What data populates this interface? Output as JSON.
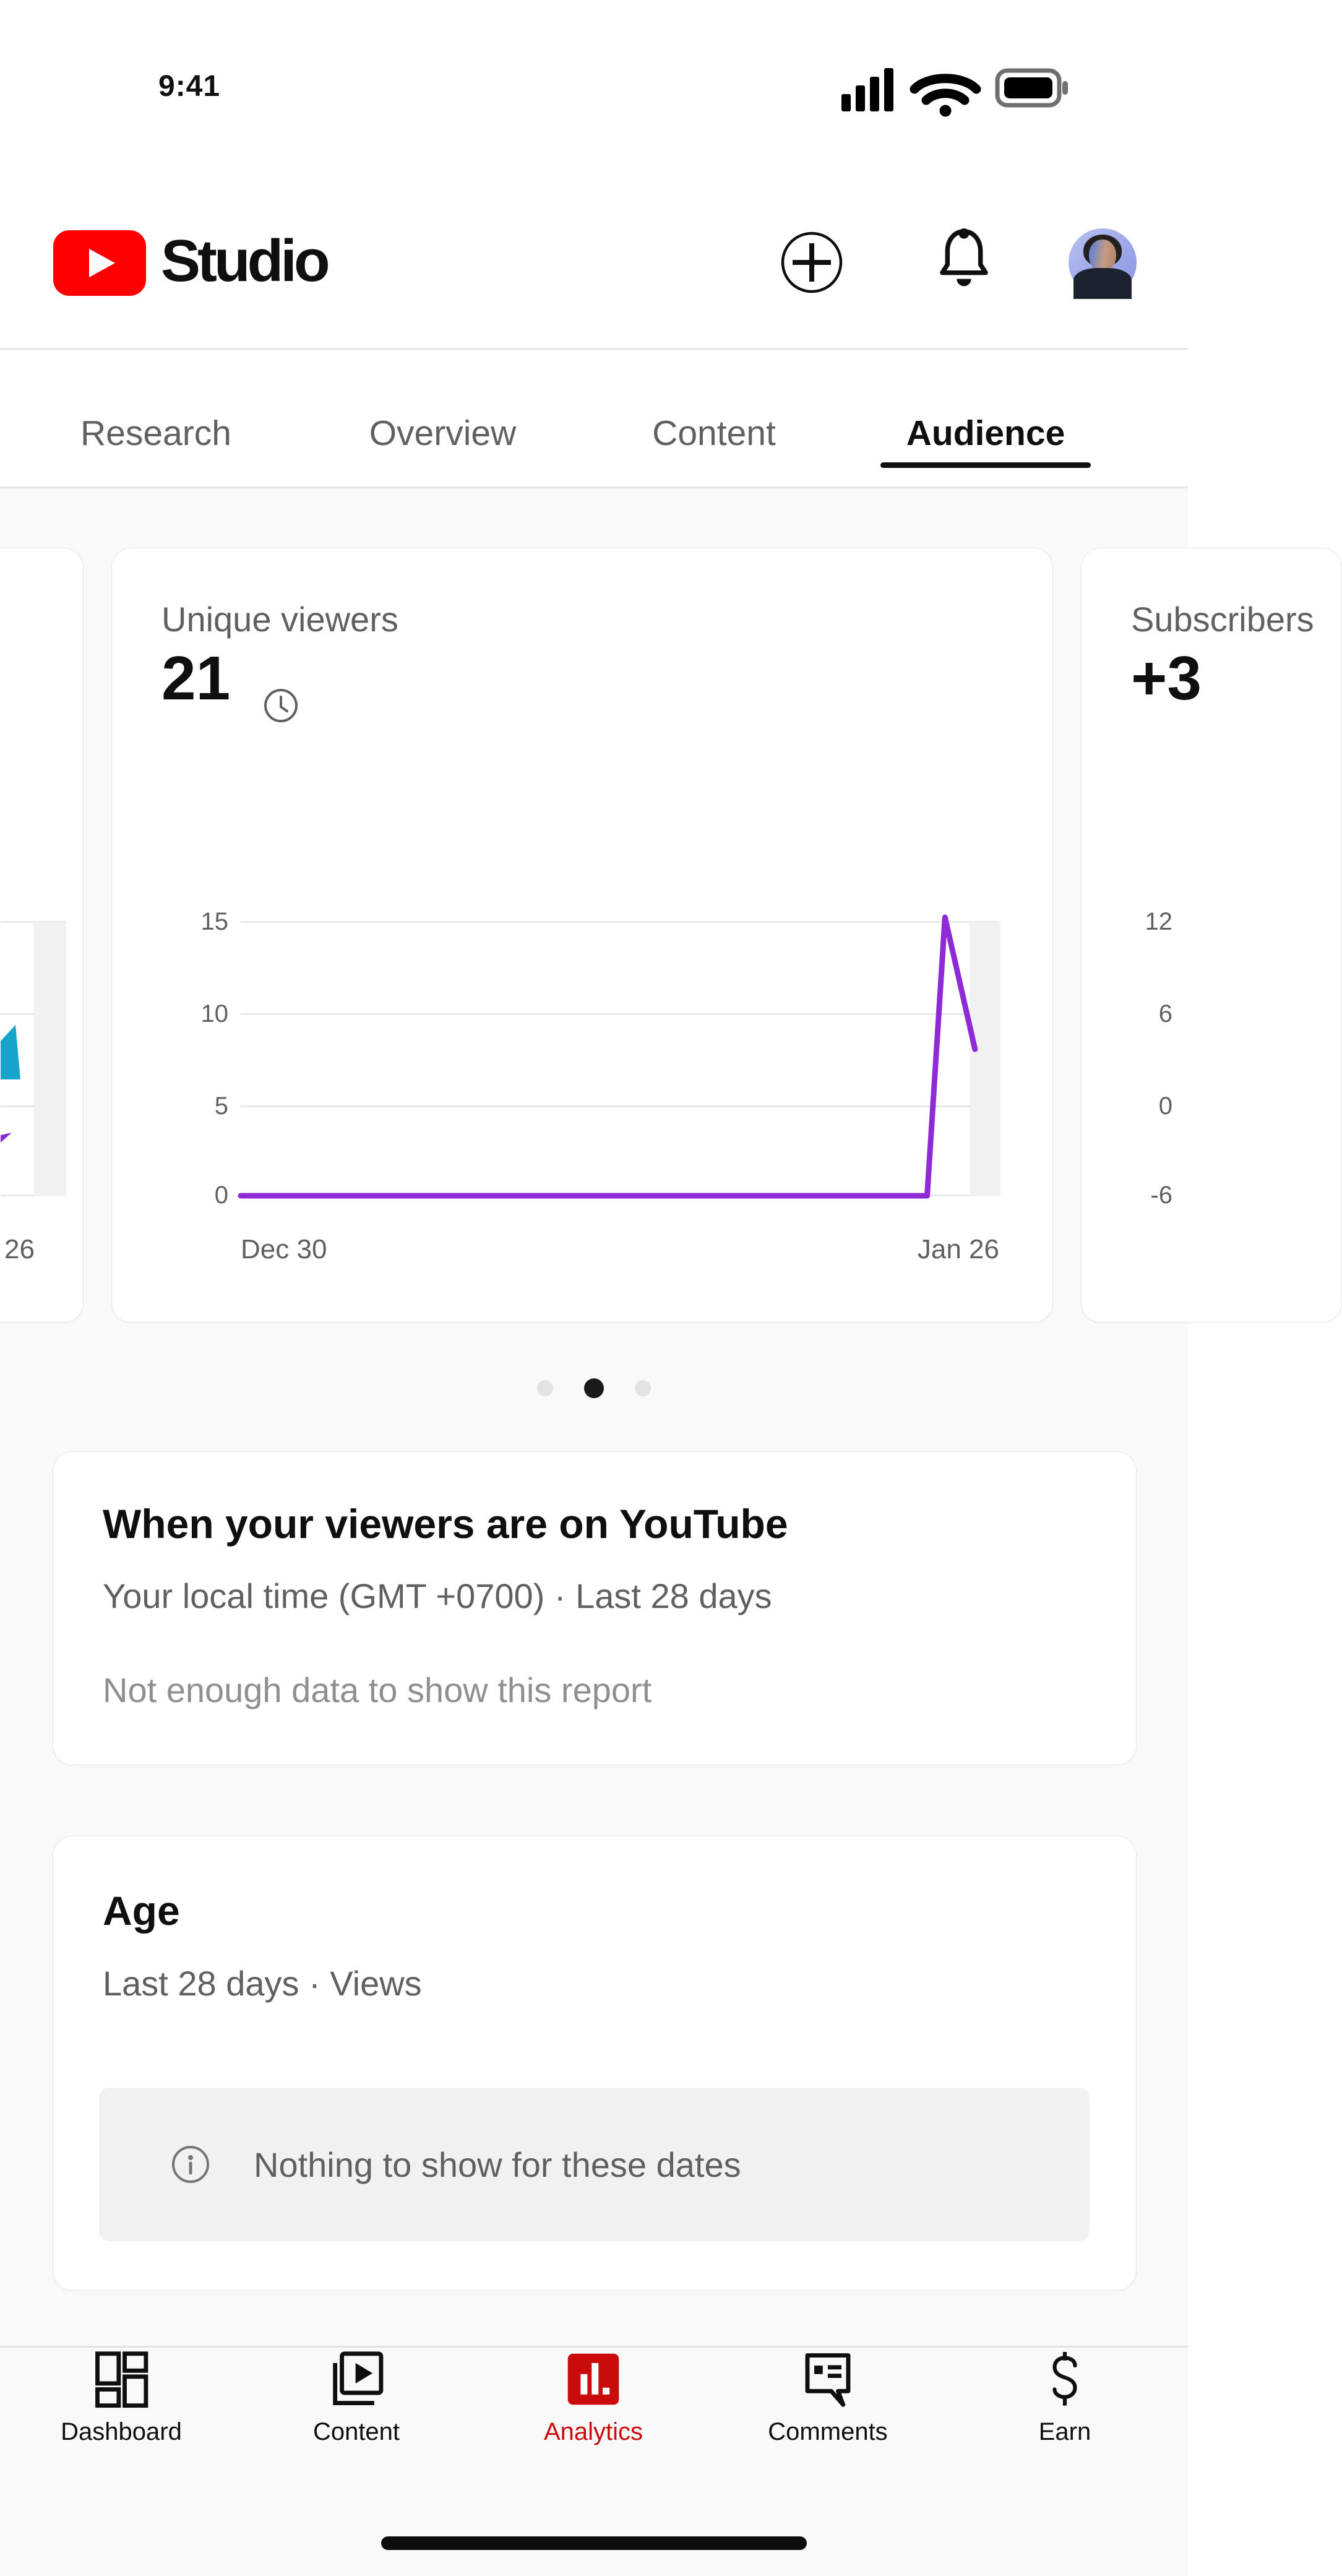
{
  "status_bar": {
    "time": "9:41",
    "icons": [
      "cellular-signal",
      "wifi",
      "battery-full"
    ]
  },
  "header": {
    "brand": "Studio",
    "create_button": "+",
    "notifications_button": "bell",
    "avatar": "profile-photo"
  },
  "tabs": {
    "items": [
      {
        "label": "Research",
        "active": false
      },
      {
        "label": "Overview",
        "active": false
      },
      {
        "label": "Content",
        "active": false
      },
      {
        "label": "Audience",
        "active": true
      }
    ]
  },
  "carousel": {
    "left_card": {
      "x_end_label": "26"
    },
    "main_card": {
      "title": "Unique viewers",
      "value": "21",
      "y_ticks": [
        "15",
        "10",
        "5",
        "0"
      ],
      "x_start_label": "Dec 30",
      "x_end_label": "Jan 26"
    },
    "right_card": {
      "title": "Subscribers",
      "value": "+3",
      "y_ticks": [
        "12",
        "6",
        "0",
        "-6"
      ]
    },
    "dots": {
      "count": 3,
      "active_index": 1
    }
  },
  "viewers_card": {
    "title": "When your viewers are on YouTube",
    "subtitle": "Your local time (GMT +0700) · Last 28 days",
    "empty_message": "Not enough data to show this report"
  },
  "age_card": {
    "title": "Age",
    "subtitle": "Last 28 days · Views",
    "empty_message": "Nothing to show for these dates"
  },
  "bottom_nav": {
    "items": [
      {
        "label": "Dashboard",
        "active": false
      },
      {
        "label": "Content",
        "active": false
      },
      {
        "label": "Analytics",
        "active": true
      },
      {
        "label": "Comments",
        "active": false
      },
      {
        "label": "Earn",
        "active": false
      }
    ]
  },
  "colors": {
    "accent_purple": "#8F2BD6",
    "accent_teal": "#17A4CC",
    "youtube_red": "#FF0000",
    "analytics_red": "#C90B0B",
    "text_primary": "#0F0F0F",
    "text_secondary": "#606060",
    "gridline": "#E8E8E8",
    "incomplete_band": "#F1F1F1",
    "page_bg": "#F9F9F9"
  },
  "chart_data": {
    "type": "line",
    "title": "Unique viewers",
    "metric_total": 21,
    "x_range": [
      "Dec 30",
      "Jan 26"
    ],
    "ylim": [
      0,
      15
    ],
    "y_ticks": [
      15,
      10,
      5,
      0
    ],
    "grid": true,
    "legend": "none",
    "line_color": "#8F2BD6",
    "points": [
      [
        0,
        0
      ],
      [
        0.905,
        0
      ],
      [
        0.9285,
        15.2
      ],
      [
        0.968,
        8
      ]
    ],
    "incomplete_band_x": [
      0.962,
      1.0
    ]
  }
}
